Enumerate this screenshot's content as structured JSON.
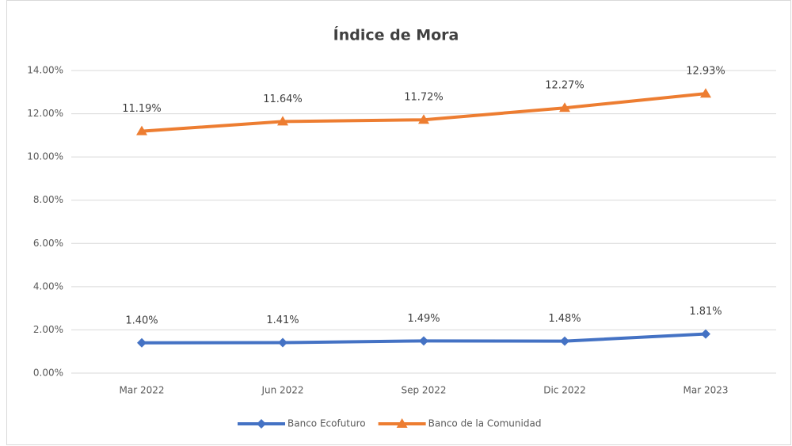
{
  "chart_data": {
    "type": "line",
    "title": "Índice de Mora",
    "categories": [
      "Mar 2022",
      "Jun 2022",
      "Sep 2022",
      "Dic 2022",
      "Mar 2023"
    ],
    "series": [
      {
        "name": "Banco Ecofuturo",
        "color": "#4472c4",
        "marker": "diamond",
        "values": [
          1.4,
          1.41,
          1.49,
          1.48,
          1.81
        ],
        "value_labels": [
          "1.40%",
          "1.41%",
          "1.49%",
          "1.48%",
          "1.81%"
        ]
      },
      {
        "name": "Banco de la Comunidad",
        "color": "#ed7d31",
        "marker": "triangle",
        "values": [
          11.19,
          11.64,
          11.72,
          12.27,
          12.93
        ],
        "value_labels": [
          "11.19%",
          "11.64%",
          "11.72%",
          "12.27%",
          "12.93%"
        ]
      }
    ],
    "ylim": [
      0,
      14
    ],
    "yticks": [
      {
        "value": 0,
        "label": "0.00%"
      },
      {
        "value": 2,
        "label": "2.00%"
      },
      {
        "value": 4,
        "label": "4.00%"
      },
      {
        "value": 6,
        "label": "6.00%"
      },
      {
        "value": 8,
        "label": "8.00%"
      },
      {
        "value": 10,
        "label": "10.00%"
      },
      {
        "value": 12,
        "label": "12.00%"
      },
      {
        "value": 14,
        "label": "14.00%"
      }
    ],
    "grid": true,
    "legend": "bottom"
  }
}
